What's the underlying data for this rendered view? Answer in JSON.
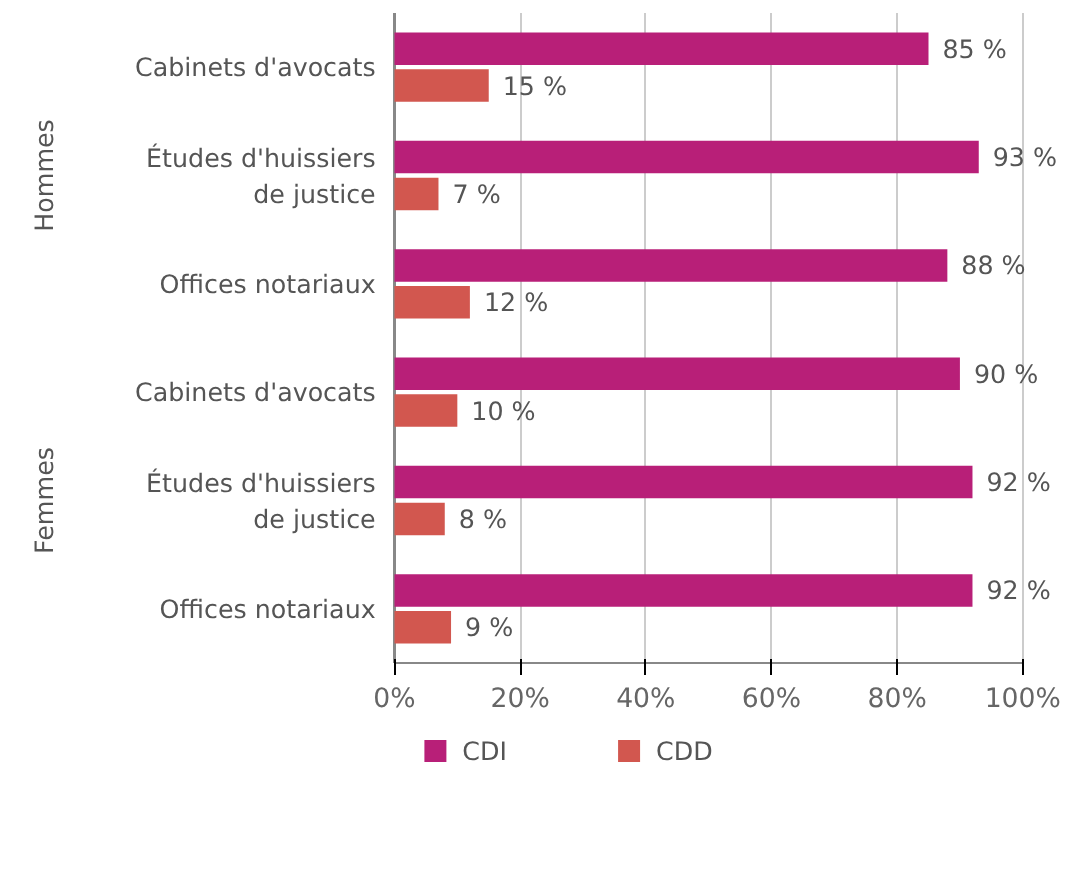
{
  "chart_data": {
    "type": "bar",
    "orientation": "horizontal",
    "categories": [
      "Cabinets d'avocats",
      "Études d'huissiers\nde justice",
      "Offices notariaux",
      "Cabinets d'avocats",
      "Études d'huissiers\nde justice",
      "Offices notariaux"
    ],
    "series": [
      {
        "name": "CDI",
        "color": "#b81f78",
        "values": [
          85,
          93,
          88,
          90,
          92,
          92
        ],
        "value_labels": [
          "85 %",
          "93 %",
          "88 %",
          "90 %",
          "92 %",
          "92 %"
        ]
      },
      {
        "name": "CDD",
        "color": "#d2574f",
        "values": [
          15,
          7,
          12,
          10,
          8,
          9
        ],
        "value_labels": [
          "15 %",
          "7 %",
          "12 %",
          "10 %",
          "8 %",
          "9 %"
        ]
      }
    ],
    "annotations": [
      "Hommes",
      "Femmes"
    ],
    "xlim": [
      0,
      100
    ],
    "xticks": [
      {
        "value": 0,
        "label": "0%"
      },
      {
        "value": 20,
        "label": "20%"
      },
      {
        "value": 40,
        "label": "40%"
      },
      {
        "value": 60,
        "label": "60%"
      },
      {
        "value": 80,
        "label": "80%"
      },
      {
        "value": 100,
        "label": "100%"
      }
    ],
    "grid": "x",
    "legend": "bottom"
  }
}
